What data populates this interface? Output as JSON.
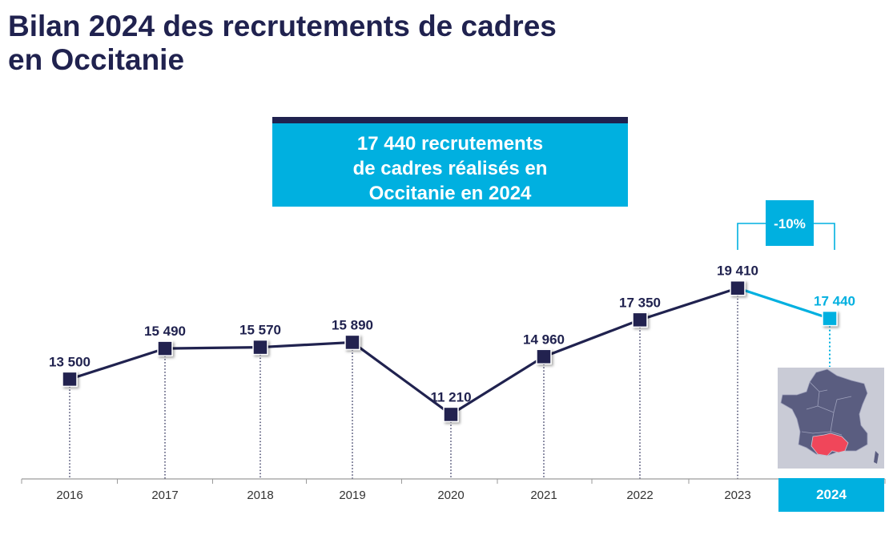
{
  "title": {
    "line1": "Bilan 2024 des recrutements de cadres",
    "line2": "en Occitanie"
  },
  "highlight": {
    "line1": "17 440 recrutements",
    "line2": "de cadres réalisés en",
    "line3": "Occitanie en 2024"
  },
  "colors": {
    "navy": "#20224f",
    "cyan": "#00b0e0",
    "occitanie_region": "#f0465a",
    "map_background": "#c9cbd6",
    "france_regions": "#5a5d80"
  },
  "chart_data": {
    "type": "line",
    "categories": [
      "2016",
      "2017",
      "2018",
      "2019",
      "2020",
      "2021",
      "2022",
      "2023",
      "2024"
    ],
    "values": [
      13500,
      15490,
      15570,
      15890,
      11210,
      14960,
      17350,
      19410,
      17440
    ],
    "value_labels": [
      "13 500",
      "15 490",
      "15 570",
      "15 890",
      "11 210",
      "14 960",
      "17 350",
      "19 410",
      "17 440"
    ],
    "highlight_category": "2024",
    "change_annotation": "-10%",
    "title": "",
    "xlabel": "",
    "ylabel": "",
    "grid": false,
    "legend": "none",
    "ylim": [
      0,
      22000
    ]
  },
  "map": {
    "icon": "france-map-icon",
    "highlighted_region": "Occitanie"
  }
}
